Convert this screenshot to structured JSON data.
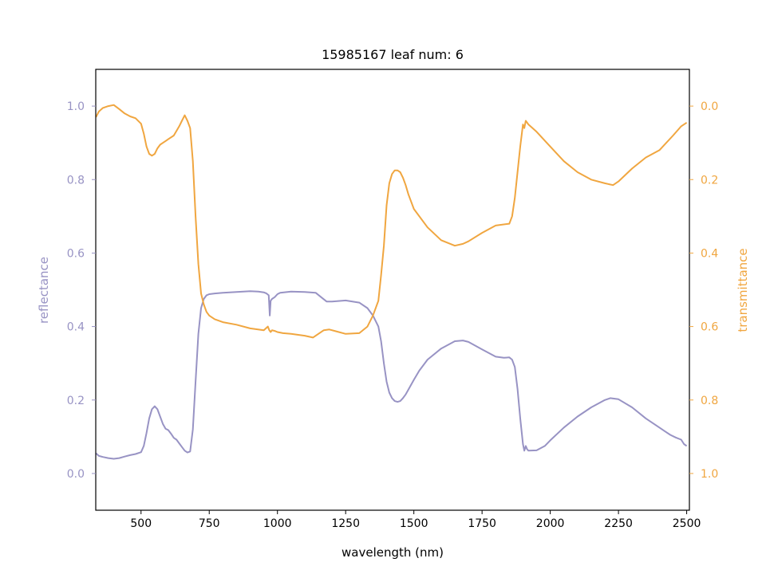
{
  "chart_data": {
    "type": "line",
    "title": "15985167 leaf num: 6",
    "xlabel": "wavelength (nm)",
    "ylabel_left": "reflectance",
    "ylabel_right": "transmittance",
    "xlim": [
      334,
      2510
    ],
    "ylim_left": [
      -0.1,
      1.1
    ],
    "ylim_right": [
      1.1,
      -0.1
    ],
    "right_axis_inverted": true,
    "x_ticks": [
      500,
      750,
      1000,
      1250,
      1500,
      1750,
      2000,
      2250,
      2500
    ],
    "y_ticks_left": [
      0.0,
      0.2,
      0.4,
      0.6,
      0.8,
      1.0
    ],
    "y_ticks_right": [
      0.0,
      0.2,
      0.4,
      0.6,
      0.8,
      1.0
    ],
    "grid": false,
    "colors": {
      "reflectance": "#9893c4",
      "transmittance": "#f0a640",
      "axis": "#000000"
    },
    "series": [
      {
        "key": "reflectance",
        "axis": "left",
        "x": [
          335,
          345,
          360,
          380,
          400,
          420,
          440,
          460,
          480,
          500,
          510,
          520,
          530,
          540,
          550,
          560,
          570,
          580,
          590,
          600,
          610,
          620,
          630,
          640,
          650,
          660,
          670,
          680,
          690,
          700,
          710,
          720,
          730,
          740,
          750,
          770,
          800,
          850,
          900,
          930,
          950,
          960,
          968,
          972,
          975,
          980,
          990,
          1000,
          1010,
          1050,
          1100,
          1140,
          1160,
          1180,
          1200,
          1250,
          1300,
          1330,
          1350,
          1370,
          1380,
          1390,
          1400,
          1410,
          1420,
          1430,
          1440,
          1450,
          1460,
          1470,
          1480,
          1500,
          1520,
          1550,
          1600,
          1650,
          1680,
          1700,
          1750,
          1800,
          1830,
          1850,
          1860,
          1870,
          1880,
          1890,
          1900,
          1905,
          1910,
          1915,
          1920,
          1950,
          1980,
          2000,
          2050,
          2100,
          2150,
          2200,
          2220,
          2250,
          2300,
          2350,
          2400,
          2420,
          2440,
          2460,
          2480,
          2490,
          2500
        ],
        "y": [
          0.055,
          0.048,
          0.045,
          0.042,
          0.04,
          0.042,
          0.046,
          0.05,
          0.053,
          0.058,
          0.075,
          0.11,
          0.15,
          0.175,
          0.183,
          0.175,
          0.155,
          0.135,
          0.122,
          0.118,
          0.108,
          0.097,
          0.092,
          0.082,
          0.072,
          0.062,
          0.057,
          0.06,
          0.12,
          0.25,
          0.38,
          0.45,
          0.475,
          0.485,
          0.488,
          0.49,
          0.492,
          0.494,
          0.496,
          0.495,
          0.493,
          0.49,
          0.485,
          0.43,
          0.47,
          0.475,
          0.48,
          0.488,
          0.492,
          0.495,
          0.494,
          0.492,
          0.48,
          0.468,
          0.468,
          0.471,
          0.465,
          0.45,
          0.43,
          0.4,
          0.36,
          0.3,
          0.25,
          0.22,
          0.205,
          0.197,
          0.195,
          0.197,
          0.205,
          0.215,
          0.228,
          0.255,
          0.28,
          0.31,
          0.34,
          0.36,
          0.362,
          0.358,
          0.338,
          0.318,
          0.315,
          0.316,
          0.31,
          0.29,
          0.23,
          0.15,
          0.08,
          0.062,
          0.075,
          0.066,
          0.062,
          0.063,
          0.075,
          0.09,
          0.125,
          0.155,
          0.18,
          0.2,
          0.205,
          0.202,
          0.18,
          0.15,
          0.125,
          0.115,
          0.105,
          0.098,
          0.092,
          0.08,
          0.075
        ]
      },
      {
        "key": "transmittance",
        "axis": "right",
        "x": [
          335,
          345,
          360,
          380,
          400,
          420,
          440,
          460,
          480,
          500,
          510,
          520,
          530,
          540,
          550,
          560,
          570,
          580,
          590,
          600,
          620,
          640,
          650,
          660,
          670,
          680,
          690,
          700,
          710,
          720,
          730,
          740,
          750,
          770,
          800,
          850,
          900,
          950,
          965,
          970,
          975,
          980,
          990,
          1000,
          1020,
          1050,
          1100,
          1130,
          1150,
          1170,
          1190,
          1210,
          1250,
          1300,
          1330,
          1350,
          1370,
          1380,
          1390,
          1400,
          1410,
          1420,
          1430,
          1440,
          1450,
          1460,
          1470,
          1480,
          1500,
          1550,
          1600,
          1650,
          1680,
          1700,
          1750,
          1800,
          1850,
          1860,
          1870,
          1880,
          1890,
          1895,
          1900,
          1905,
          1910,
          1920,
          1950,
          2000,
          2050,
          2100,
          2150,
          2200,
          2230,
          2250,
          2300,
          2350,
          2400,
          2450,
          2480,
          2500
        ],
        "y": [
          0.03,
          0.015,
          0.005,
          0.0,
          -0.003,
          0.008,
          0.02,
          0.028,
          0.033,
          0.048,
          0.075,
          0.11,
          0.13,
          0.135,
          0.13,
          0.115,
          0.105,
          0.1,
          0.095,
          0.09,
          0.08,
          0.055,
          0.04,
          0.025,
          0.04,
          0.06,
          0.15,
          0.3,
          0.43,
          0.51,
          0.54,
          0.56,
          0.57,
          0.58,
          0.588,
          0.595,
          0.605,
          0.61,
          0.6,
          0.61,
          0.615,
          0.61,
          0.612,
          0.615,
          0.618,
          0.62,
          0.625,
          0.63,
          0.62,
          0.61,
          0.608,
          0.612,
          0.62,
          0.618,
          0.6,
          0.57,
          0.53,
          0.46,
          0.38,
          0.27,
          0.21,
          0.185,
          0.175,
          0.175,
          0.18,
          0.195,
          0.215,
          0.24,
          0.28,
          0.33,
          0.365,
          0.38,
          0.375,
          0.368,
          0.345,
          0.325,
          0.32,
          0.3,
          0.25,
          0.18,
          0.11,
          0.08,
          0.05,
          0.06,
          0.04,
          0.05,
          0.07,
          0.11,
          0.15,
          0.18,
          0.2,
          0.21,
          0.215,
          0.205,
          0.17,
          0.14,
          0.12,
          0.08,
          0.055,
          0.045
        ]
      }
    ]
  }
}
